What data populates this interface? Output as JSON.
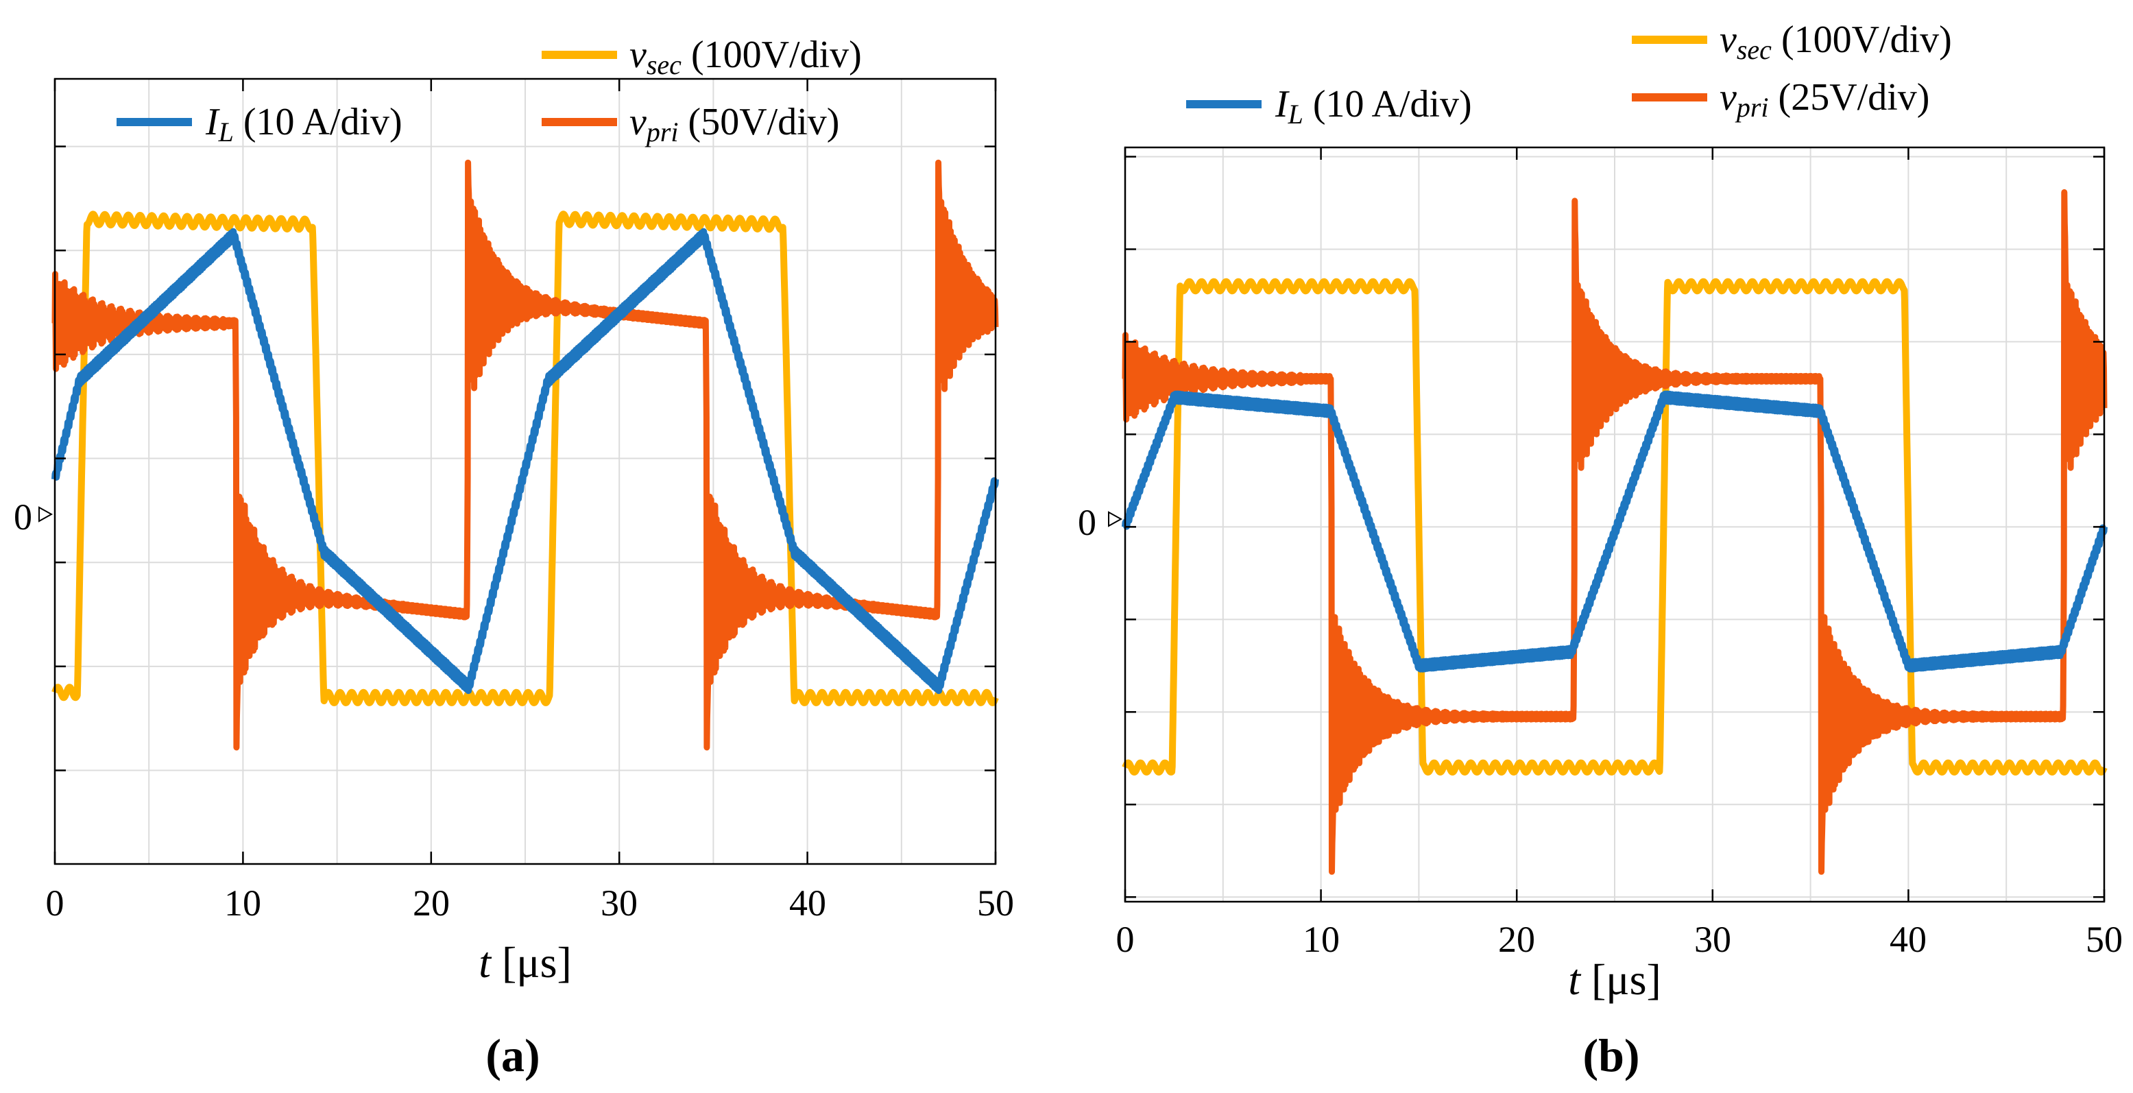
{
  "chart_data": [
    {
      "type": "line",
      "panel": "a",
      "caption": "(a)",
      "xlabel_var": "t",
      "xlabel_unit": "[μs]",
      "xlim": [
        0,
        50
      ],
      "x_ticks": [
        "0",
        "10",
        "20",
        "30",
        "40",
        "50"
      ],
      "ylim": [
        -3.9,
        3.65
      ],
      "zero_label": "0",
      "legend": {
        "placement": "top",
        "IL_var": "I",
        "IL_sub": "L",
        "IL_scale": "(10 A/div)",
        "vsec_var": "v",
        "vsec_sub": "sec",
        "vsec_scale": "(100V/div)",
        "vpri_var": "v",
        "vpri_sub": "pri",
        "vpri_scale": "(50V/div)"
      },
      "series": [
        {
          "name": "I_L",
          "color": "#1f77c0",
          "points": [
            [
              0,
              -0.2
            ],
            [
              1.3,
              0.75
            ],
            [
              9.5,
              2.15
            ],
            [
              14.3,
              -0.9
            ],
            [
              22,
              -2.2
            ],
            [
              26.2,
              0.75
            ],
            [
              34.5,
              2.15
            ],
            [
              39.3,
              -0.9
            ],
            [
              47,
              -2.2
            ],
            [
              50,
              -0.2
            ]
          ]
        },
        {
          "name": "v_sec",
          "color": "#ffb300",
          "points": [
            [
              0,
              -2.25
            ],
            [
              1.2,
              -2.25
            ],
            [
              1.7,
              2.3
            ],
            [
              13.7,
              2.25
            ],
            [
              14.3,
              -2.3
            ],
            [
              26.3,
              -2.3
            ],
            [
              26.8,
              2.3
            ],
            [
              38.7,
              2.25
            ],
            [
              39.3,
              -2.3
            ],
            [
              50,
              -2.3
            ]
          ]
        },
        {
          "name": "v_pri",
          "color": "#f25a0f",
          "points": [
            [
              0,
              1.3
            ],
            [
              9.6,
              1.3
            ],
            [
              9.7,
              -1.25
            ],
            [
              21.9,
              -1.5
            ],
            [
              22.0,
              1.55
            ],
            [
              34.6,
              1.3
            ],
            [
              34.7,
              -1.25
            ],
            [
              46.9,
              -1.5
            ],
            [
              47.0,
              1.55
            ],
            [
              50,
              1.4
            ]
          ],
          "ringing": [
            {
              "t": 0,
              "peak": 0.0,
              "amp": 0.45,
              "decay": 2.5
            },
            {
              "t": 9.65,
              "peak": -2.85,
              "amp": 1.05,
              "decay": 1.5
            },
            {
              "t": 21.95,
              "peak": 3.05,
              "amp": 1.1,
              "decay": 1.5
            },
            {
              "t": 34.65,
              "peak": -2.85,
              "amp": 1.05,
              "decay": 1.5
            },
            {
              "t": 46.95,
              "peak": 3.05,
              "amp": 1.1,
              "decay": 1.5
            }
          ]
        }
      ]
    },
    {
      "type": "line",
      "panel": "b",
      "caption": "(b)",
      "xlabel_var": "t",
      "xlabel_unit": "[μs]",
      "xlim": [
        0,
        50
      ],
      "x_ticks": [
        "0",
        "10",
        "20",
        "30",
        "40",
        "50"
      ],
      "ylim": [
        -4.05,
        4.1
      ],
      "zero_label": "0",
      "legend": {
        "placement": "top",
        "IL_var": "I",
        "IL_sub": "L",
        "IL_scale": "(10 A/div)",
        "vsec_var": "v",
        "vsec_sub": "sec",
        "vsec_scale": "(100V/div)",
        "vpri_var": "v",
        "vpri_sub": "pri",
        "vpri_scale": "(25V/div)"
      },
      "series": [
        {
          "name": "I_L",
          "color": "#1f77c0",
          "points": [
            [
              0,
              0
            ],
            [
              2.5,
              1.4
            ],
            [
              10.5,
              1.25
            ],
            [
              15,
              -1.5
            ],
            [
              22.8,
              -1.35
            ],
            [
              27.5,
              1.4
            ],
            [
              35.5,
              1.25
            ],
            [
              40,
              -1.5
            ],
            [
              47.8,
              -1.35
            ],
            [
              50,
              0
            ]
          ]
        },
        {
          "name": "v_sec",
          "color": "#ffb300",
          "points": [
            [
              0,
              -2.6
            ],
            [
              2.4,
              -2.6
            ],
            [
              2.8,
              2.6
            ],
            [
              14.8,
              2.6
            ],
            [
              15.2,
              -2.6
            ],
            [
              27.3,
              -2.6
            ],
            [
              27.7,
              2.6
            ],
            [
              39.8,
              2.6
            ],
            [
              40.2,
              -2.6
            ],
            [
              50,
              -2.6
            ]
          ]
        },
        {
          "name": "v_pri",
          "color": "#f25a0f",
          "points": [
            [
              0,
              1.6
            ],
            [
              10.5,
              1.6
            ],
            [
              10.6,
              -2.05
            ],
            [
              22.9,
              -2.05
            ],
            [
              23.0,
              1.6
            ],
            [
              35.5,
              1.6
            ],
            [
              35.6,
              -2.05
            ],
            [
              47.9,
              -2.05
            ],
            [
              48.0,
              1.6
            ],
            [
              50,
              1.6
            ]
          ],
          "ringing": [
            {
              "t": 0,
              "peak": 0.0,
              "amp": 0.45,
              "decay": 2.5
            },
            {
              "t": 10.55,
              "peak": -3.9,
              "amp": 1.2,
              "decay": 1.6
            },
            {
              "t": 22.95,
              "peak": 3.8,
              "amp": 1.2,
              "decay": 1.6
            },
            {
              "t": 35.55,
              "peak": -3.9,
              "amp": 1.2,
              "decay": 1.6
            },
            {
              "t": 47.95,
              "peak": 3.9,
              "amp": 1.2,
              "decay": 1.6
            }
          ]
        }
      ]
    }
  ]
}
